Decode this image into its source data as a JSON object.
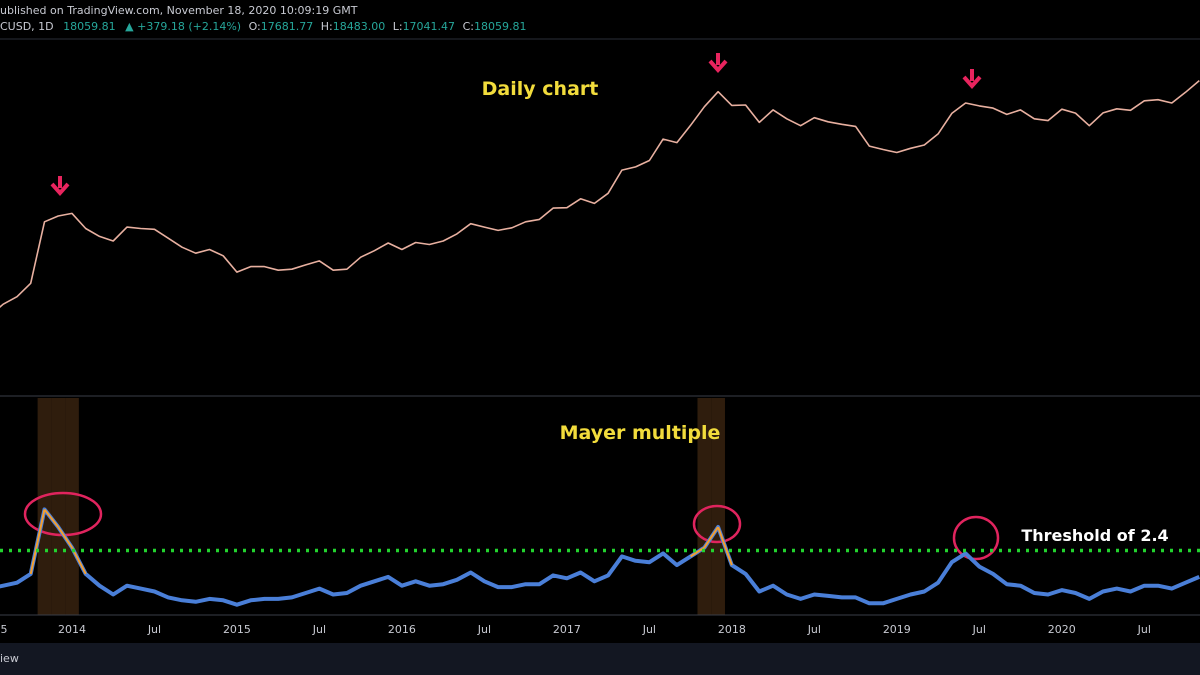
{
  "header": {
    "published": "ublished on TradingView.com, November 18, 2020 10:09:19 GMT",
    "symbol": "CUSD, 1D",
    "last": "18059.81",
    "change": "▲ +379.18 (+2.14%)",
    "ohlc": [
      {
        "label": "O:",
        "value": "17681.77"
      },
      {
        "label": "H:",
        "value": "18483.00"
      },
      {
        "label": "L:",
        "value": "17041.47"
      },
      {
        "label": "C:",
        "value": "18059.81"
      }
    ]
  },
  "chart_data": [
    {
      "type": "line",
      "annotation": "Daily chart",
      "log_scale": true,
      "color": "#e8b0a0",
      "ylim": [
        13,
        46000
      ],
      "xlim": [
        "2013-07",
        "2020-12"
      ],
      "x": [
        "2013-07",
        "2013-08",
        "2013-09",
        "2013-10",
        "2013-11",
        "2013-12",
        "2014-01",
        "2014-02",
        "2014-03",
        "2014-04",
        "2014-05",
        "2014-06",
        "2014-07",
        "2014-08",
        "2014-09",
        "2014-10",
        "2014-11",
        "2014-12",
        "2015-01",
        "2015-02",
        "2015-03",
        "2015-04",
        "2015-05",
        "2015-06",
        "2015-07",
        "2015-08",
        "2015-09",
        "2015-10",
        "2015-11",
        "2015-12",
        "2016-01",
        "2016-02",
        "2016-03",
        "2016-04",
        "2016-05",
        "2016-06",
        "2016-07",
        "2016-08",
        "2016-09",
        "2016-10",
        "2016-11",
        "2016-12",
        "2017-01",
        "2017-02",
        "2017-03",
        "2017-04",
        "2017-05",
        "2017-06",
        "2017-07",
        "2017-08",
        "2017-09",
        "2017-10",
        "2017-11",
        "2017-12",
        "2018-01",
        "2018-02",
        "2018-03",
        "2018-04",
        "2018-05",
        "2018-06",
        "2018-07",
        "2018-08",
        "2018-09",
        "2018-10",
        "2018-11",
        "2018-12",
        "2019-01",
        "2019-02",
        "2019-03",
        "2019-04",
        "2019-05",
        "2019-06",
        "2019-07",
        "2019-08",
        "2019-09",
        "2019-10",
        "2019-11",
        "2019-12",
        "2020-01",
        "2020-02",
        "2020-03",
        "2020-04",
        "2020-05",
        "2020-06",
        "2020-07",
        "2020-08",
        "2020-09",
        "2020-10",
        "2020-11"
      ],
      "values": [
        80,
        105,
        125,
        170,
        700,
        800,
        850,
        600,
        500,
        450,
        620,
        600,
        590,
        480,
        390,
        340,
        370,
        320,
        220,
        250,
        250,
        230,
        235,
        260,
        285,
        230,
        235,
        310,
        360,
        430,
        370,
        435,
        415,
        450,
        530,
        670,
        620,
        575,
        610,
        700,
        740,
        960,
        970,
        1190,
        1070,
        1350,
        2300,
        2480,
        2870,
        4700,
        4340,
        6450,
        9900,
        14000,
        10200,
        10300,
        6900,
        9200,
        7500,
        6400,
        7700,
        7000,
        6600,
        6300,
        4000,
        3700,
        3450,
        3800,
        4100,
        5300,
        8500,
        10800,
        10100,
        9600,
        8300,
        9200,
        7500,
        7200,
        9350,
        8550,
        6400,
        8600,
        9450,
        9130,
        11350,
        11650,
        10780,
        13800,
        18060
      ]
    },
    {
      "type": "line",
      "annotation": "Mayer multiple",
      "threshold": 2.4,
      "threshold_label": "Threshold of 2.4",
      "threshold_color": "#22d32e",
      "color": "#4a7fd8",
      "highlight_color": "#f5a030",
      "band_color": "#3b2410",
      "ylim": [
        0.2,
        7.6
      ],
      "xlim": [
        "2013-07",
        "2020-12"
      ],
      "xticks": [
        {
          "value": "2013-07",
          "label": "5"
        },
        {
          "value": "2014-01",
          "label": "2014"
        },
        {
          "value": "2014-07",
          "label": "Jul"
        },
        {
          "value": "2015-01",
          "label": "2015"
        },
        {
          "value": "2015-07",
          "label": "Jul"
        },
        {
          "value": "2016-01",
          "label": "2016"
        },
        {
          "value": "2016-07",
          "label": "Jul"
        },
        {
          "value": "2017-01",
          "label": "2017"
        },
        {
          "value": "2017-07",
          "label": "Jul"
        },
        {
          "value": "2018-01",
          "label": "2018"
        },
        {
          "value": "2018-07",
          "label": "Jul"
        },
        {
          "value": "2019-01",
          "label": "2019"
        },
        {
          "value": "2019-07",
          "label": "Jul"
        },
        {
          "value": "2020-01",
          "label": "2020"
        },
        {
          "value": "2020-07",
          "label": "Jul"
        }
      ],
      "x": [
        "2013-07",
        "2013-08",
        "2013-09",
        "2013-10",
        "2013-11",
        "2013-12",
        "2014-01",
        "2014-02",
        "2014-03",
        "2014-04",
        "2014-05",
        "2014-06",
        "2014-07",
        "2014-08",
        "2014-09",
        "2014-10",
        "2014-11",
        "2014-12",
        "2015-01",
        "2015-02",
        "2015-03",
        "2015-04",
        "2015-05",
        "2015-06",
        "2015-07",
        "2015-08",
        "2015-09",
        "2015-10",
        "2015-11",
        "2015-12",
        "2016-01",
        "2016-02",
        "2016-03",
        "2016-04",
        "2016-05",
        "2016-06",
        "2016-07",
        "2016-08",
        "2016-09",
        "2016-10",
        "2016-11",
        "2016-12",
        "2017-01",
        "2017-02",
        "2017-03",
        "2017-04",
        "2017-05",
        "2017-06",
        "2017-07",
        "2017-08",
        "2017-09",
        "2017-10",
        "2017-11",
        "2017-12",
        "2018-01",
        "2018-02",
        "2018-03",
        "2018-04",
        "2018-05",
        "2018-06",
        "2018-07",
        "2018-08",
        "2018-09",
        "2018-10",
        "2018-11",
        "2018-12",
        "2019-01",
        "2019-02",
        "2019-03",
        "2019-04",
        "2019-05",
        "2019-06",
        "2019-07",
        "2019-08",
        "2019-09",
        "2019-10",
        "2019-11",
        "2019-12",
        "2020-01",
        "2020-02",
        "2020-03",
        "2020-04",
        "2020-05",
        "2020-06",
        "2020-07",
        "2020-08",
        "2020-09",
        "2020-10",
        "2020-11"
      ],
      "values": [
        1.1,
        1.2,
        1.3,
        1.6,
        3.8,
        3.2,
        2.5,
        1.6,
        1.2,
        0.9,
        1.2,
        1.1,
        1.0,
        0.8,
        0.7,
        0.65,
        0.75,
        0.7,
        0.55,
        0.7,
        0.75,
        0.75,
        0.8,
        0.95,
        1.1,
        0.9,
        0.95,
        1.2,
        1.35,
        1.5,
        1.2,
        1.35,
        1.2,
        1.25,
        1.4,
        1.65,
        1.35,
        1.15,
        1.15,
        1.25,
        1.25,
        1.55,
        1.45,
        1.65,
        1.35,
        1.55,
        2.2,
        2.05,
        2.0,
        2.3,
        1.9,
        2.2,
        2.5,
        3.2,
        1.9,
        1.6,
        1.0,
        1.2,
        0.9,
        0.75,
        0.9,
        0.85,
        0.8,
        0.8,
        0.6,
        0.6,
        0.75,
        0.9,
        1.0,
        1.3,
        2.0,
        2.3,
        1.85,
        1.6,
        1.25,
        1.2,
        0.95,
        0.9,
        1.05,
        0.95,
        0.75,
        1.0,
        1.1,
        1.0,
        1.2,
        1.2,
        1.1,
        1.3,
        1.5
      ]
    }
  ],
  "footer": "iew"
}
